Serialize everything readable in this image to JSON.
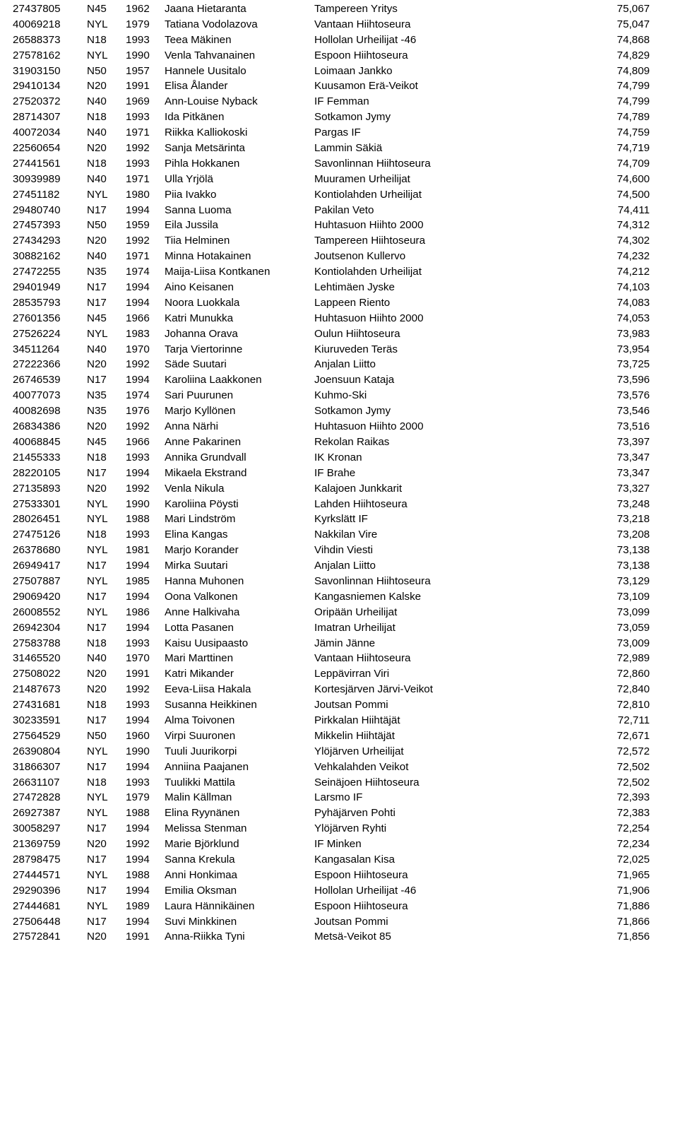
{
  "font_family": "Arial",
  "font_size_pt": 11,
  "text_color": "#000000",
  "background_color": "#ffffff",
  "columns": [
    "id",
    "category",
    "year",
    "name",
    "club",
    "points"
  ],
  "rows": [
    [
      "27437805",
      "N45",
      "1962",
      "Jaana Hietaranta",
      "Tampereen Yritys",
      "75,067"
    ],
    [
      "40069218",
      "NYL",
      "1979",
      "Tatiana Vodolazova",
      "Vantaan Hiihtoseura",
      "75,047"
    ],
    [
      "26588373",
      "N18",
      "1993",
      "Teea Mäkinen",
      "Hollolan Urheilijat -46",
      "74,868"
    ],
    [
      "27578162",
      "NYL",
      "1990",
      "Venla Tahvanainen",
      "Espoon Hiihtoseura",
      "74,829"
    ],
    [
      "31903150",
      "N50",
      "1957",
      "Hannele Uusitalo",
      "Loimaan Jankko",
      "74,809"
    ],
    [
      "29410134",
      "N20",
      "1991",
      "Elisa Ålander",
      "Kuusamon Erä-Veikot",
      "74,799"
    ],
    [
      "27520372",
      "N40",
      "1969",
      "Ann-Louise Nyback",
      "IF Femman",
      "74,799"
    ],
    [
      "28714307",
      "N18",
      "1993",
      "Ida Pitkänen",
      "Sotkamon Jymy",
      "74,789"
    ],
    [
      "40072034",
      "N40",
      "1971",
      "Riikka Kalliokoski",
      "Pargas IF",
      "74,759"
    ],
    [
      "22560654",
      "N20",
      "1992",
      "Sanja Metsärinta",
      "Lammin Säkiä",
      "74,719"
    ],
    [
      "27441561",
      "N18",
      "1993",
      "Pihla Hokkanen",
      "Savonlinnan Hiihtoseura",
      "74,709"
    ],
    [
      "30939989",
      "N40",
      "1971",
      "Ulla Yrjölä",
      "Muuramen Urheilijat",
      "74,600"
    ],
    [
      "27451182",
      "NYL",
      "1980",
      "Piia Ivakko",
      "Kontiolahden Urheilijat",
      "74,500"
    ],
    [
      "29480740",
      "N17",
      "1994",
      "Sanna Luoma",
      "Pakilan Veto",
      "74,411"
    ],
    [
      "27457393",
      "N50",
      "1959",
      "Eila Jussila",
      "Huhtasuon Hiihto 2000",
      "74,312"
    ],
    [
      "27434293",
      "N20",
      "1992",
      "Tiia Helminen",
      "Tampereen Hiihtoseura",
      "74,302"
    ],
    [
      "30882162",
      "N40",
      "1971",
      "Minna Hotakainen",
      "Joutsenon Kullervo",
      "74,232"
    ],
    [
      "27472255",
      "N35",
      "1974",
      "Maija-Liisa Kontkanen",
      "Kontiolahden Urheilijat",
      "74,212"
    ],
    [
      "29401949",
      "N17",
      "1994",
      "Aino Keisanen",
      "Lehtimäen Jyske",
      "74,103"
    ],
    [
      "28535793",
      "N17",
      "1994",
      "Noora Luokkala",
      "Lappeen Riento",
      "74,083"
    ],
    [
      "27601356",
      "N45",
      "1966",
      "Katri Munukka",
      "Huhtasuon Hiihto 2000",
      "74,053"
    ],
    [
      "27526224",
      "NYL",
      "1983",
      "Johanna Orava",
      "Oulun Hiihtoseura",
      "73,983"
    ],
    [
      "34511264",
      "N40",
      "1970",
      "Tarja Viertorinne",
      "Kiuruveden Teräs",
      "73,954"
    ],
    [
      "27222366",
      "N20",
      "1992",
      "Säde Suutari",
      "Anjalan Liitto",
      "73,725"
    ],
    [
      "26746539",
      "N17",
      "1994",
      "Karoliina Laakkonen",
      "Joensuun Kataja",
      "73,596"
    ],
    [
      "40077073",
      "N35",
      "1974",
      "Sari Puurunen",
      "Kuhmo-Ski",
      "73,576"
    ],
    [
      "40082698",
      "N35",
      "1976",
      "Marjo Kyllönen",
      "Sotkamon Jymy",
      "73,546"
    ],
    [
      "26834386",
      "N20",
      "1992",
      "Anna Närhi",
      "Huhtasuon Hiihto 2000",
      "73,516"
    ],
    [
      "40068845",
      "N45",
      "1966",
      "Anne Pakarinen",
      "Rekolan Raikas",
      "73,397"
    ],
    [
      "21455333",
      "N18",
      "1993",
      "Annika Grundvall",
      "IK Kronan",
      "73,347"
    ],
    [
      "28220105",
      "N17",
      "1994",
      "Mikaela Ekstrand",
      "IF Brahe",
      "73,347"
    ],
    [
      "27135893",
      "N20",
      "1992",
      "Venla Nikula",
      "Kalajoen Junkkarit",
      "73,327"
    ],
    [
      "27533301",
      "NYL",
      "1990",
      "Karoliina Pöysti",
      "Lahden Hiihtoseura",
      "73,248"
    ],
    [
      "28026451",
      "NYL",
      "1988",
      "Mari Lindström",
      "Kyrkslätt IF",
      "73,218"
    ],
    [
      "27475126",
      "N18",
      "1993",
      "Elina Kangas",
      "Nakkilan Vire",
      "73,208"
    ],
    [
      "26378680",
      "NYL",
      "1981",
      "Marjo Korander",
      "Vihdin Viesti",
      "73,138"
    ],
    [
      "26949417",
      "N17",
      "1994",
      "Mirka Suutari",
      "Anjalan Liitto",
      "73,138"
    ],
    [
      "27507887",
      "NYL",
      "1985",
      "Hanna Muhonen",
      "Savonlinnan Hiihtoseura",
      "73,129"
    ],
    [
      "29069420",
      "N17",
      "1994",
      "Oona Valkonen",
      "Kangasniemen Kalske",
      "73,109"
    ],
    [
      "26008552",
      "NYL",
      "1986",
      "Anne Halkivaha",
      "Oripään Urheilijat",
      "73,099"
    ],
    [
      "26942304",
      "N17",
      "1994",
      "Lotta Pasanen",
      "Imatran Urheilijat",
      "73,059"
    ],
    [
      "27583788",
      "N18",
      "1993",
      "Kaisu Uusipaasto",
      "Jämin Jänne",
      "73,009"
    ],
    [
      "31465520",
      "N40",
      "1970",
      "Mari Marttinen",
      "Vantaan Hiihtoseura",
      "72,989"
    ],
    [
      "27508022",
      "N20",
      "1991",
      "Katri Mikander",
      "Leppävirran Viri",
      "72,860"
    ],
    [
      "21487673",
      "N20",
      "1992",
      "Eeva-Liisa Hakala",
      "Kortesjärven Järvi-Veikot",
      "72,840"
    ],
    [
      "27431681",
      "N18",
      "1993",
      "Susanna Heikkinen",
      "Joutsan Pommi",
      "72,810"
    ],
    [
      "30233591",
      "N17",
      "1994",
      "Alma Toivonen",
      "Pirkkalan Hiihtäjät",
      "72,711"
    ],
    [
      "27564529",
      "N50",
      "1960",
      "Virpi Suuronen",
      "Mikkelin Hiihtäjät",
      "72,671"
    ],
    [
      "26390804",
      "NYL",
      "1990",
      "Tuuli Juurikorpi",
      "Ylöjärven Urheilijat",
      "72,572"
    ],
    [
      "31866307",
      "N17",
      "1994",
      "Anniina Paajanen",
      "Vehkalahden Veikot",
      "72,502"
    ],
    [
      "26631107",
      "N18",
      "1993",
      "Tuulikki Mattila",
      "Seinäjoen Hiihtoseura",
      "72,502"
    ],
    [
      "27472828",
      "NYL",
      "1979",
      "Malin Källman",
      "Larsmo IF",
      "72,393"
    ],
    [
      "26927387",
      "NYL",
      "1988",
      "Elina Ryynänen",
      "Pyhäjärven Pohti",
      "72,383"
    ],
    [
      "30058297",
      "N17",
      "1994",
      "Melissa Stenman",
      "Ylöjärven Ryhti",
      "72,254"
    ],
    [
      "21369759",
      "N20",
      "1992",
      "Marie Björklund",
      "IF Minken",
      "72,234"
    ],
    [
      "28798475",
      "N17",
      "1994",
      "Sanna Krekula",
      "Kangasalan Kisa",
      "72,025"
    ],
    [
      "27444571",
      "NYL",
      "1988",
      "Anni Honkimaa",
      "Espoon Hiihtoseura",
      "71,965"
    ],
    [
      "29290396",
      "N17",
      "1994",
      "Emilia Oksman",
      "Hollolan Urheilijat -46",
      "71,906"
    ],
    [
      "27444681",
      "NYL",
      "1989",
      "Laura Hännikäinen",
      "Espoon Hiihtoseura",
      "71,886"
    ],
    [
      "27506448",
      "N17",
      "1994",
      "Suvi Minkkinen",
      "Joutsan Pommi",
      "71,866"
    ],
    [
      "27572841",
      "N20",
      "1991",
      "Anna-Riikka Tyni",
      "Metsä-Veikot 85",
      "71,856"
    ]
  ]
}
